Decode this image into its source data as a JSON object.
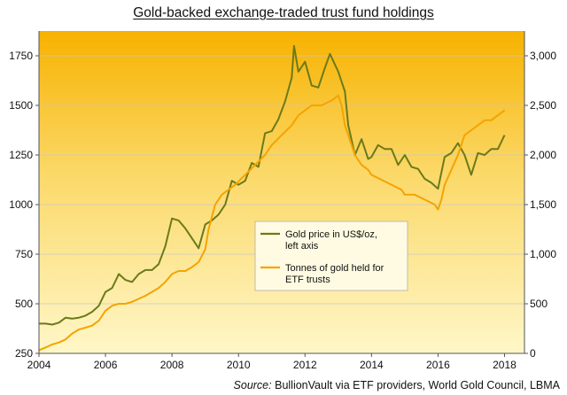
{
  "chart_data": {
    "type": "line",
    "title": "Gold-backed exchange-traded trust fund holdings",
    "source_label": "Source:",
    "source_text": "BullionVault via ETF providers,  World Gold Council, LBMA",
    "x_ticks": [
      "2004",
      "2006",
      "2008",
      "2010",
      "2012",
      "2014",
      "2016",
      "2018"
    ],
    "xlim": [
      2004,
      2018.6
    ],
    "left_axis": {
      "ylim": [
        250,
        1875
      ],
      "ticks": [
        250,
        500,
        750,
        1000,
        1250,
        1500,
        1750
      ],
      "tick_labels": [
        "250",
        "500",
        "750",
        "1000",
        "1250",
        "1500",
        "1750"
      ]
    },
    "right_axis": {
      "ylim": [
        0,
        3250
      ],
      "ticks": [
        0,
        500,
        1000,
        1500,
        2000,
        2500,
        3000
      ],
      "tick_labels": [
        "0",
        "500",
        "1,000",
        "1,500",
        "2,000",
        "2,500",
        "3,000"
      ]
    },
    "legend_position": "center",
    "series": [
      {
        "name": "Gold price in US$/oz,",
        "name_line2": "left axis",
        "axis": "left",
        "color": "#6b7a1a",
        "x": [
          2004.0,
          2004.2,
          2004.4,
          2004.6,
          2004.8,
          2005.0,
          2005.2,
          2005.4,
          2005.6,
          2005.8,
          2006.0,
          2006.2,
          2006.4,
          2006.6,
          2006.8,
          2007.0,
          2007.2,
          2007.4,
          2007.6,
          2007.8,
          2008.0,
          2008.2,
          2008.4,
          2008.6,
          2008.8,
          2009.0,
          2009.2,
          2009.4,
          2009.6,
          2009.8,
          2010.0,
          2010.2,
          2010.4,
          2010.6,
          2010.8,
          2011.0,
          2011.2,
          2011.4,
          2011.6,
          2011.67,
          2011.8,
          2012.0,
          2012.2,
          2012.4,
          2012.6,
          2012.75,
          2013.0,
          2013.2,
          2013.3,
          2013.5,
          2013.7,
          2013.9,
          2014.0,
          2014.2,
          2014.4,
          2014.6,
          2014.8,
          2015.0,
          2015.2,
          2015.4,
          2015.6,
          2015.8,
          2016.0,
          2016.2,
          2016.4,
          2016.6,
          2016.8,
          2017.0,
          2017.2,
          2017.4,
          2017.6,
          2017.8,
          2018.0
        ],
        "values": [
          400,
          400,
          395,
          405,
          430,
          425,
          430,
          440,
          460,
          490,
          560,
          580,
          650,
          620,
          610,
          650,
          670,
          670,
          700,
          790,
          930,
          920,
          880,
          830,
          780,
          900,
          920,
          950,
          1000,
          1120,
          1100,
          1120,
          1210,
          1190,
          1360,
          1370,
          1430,
          1520,
          1640,
          1800,
          1670,
          1720,
          1600,
          1590,
          1690,
          1760,
          1670,
          1570,
          1400,
          1250,
          1330,
          1230,
          1240,
          1300,
          1280,
          1280,
          1200,
          1250,
          1190,
          1180,
          1130,
          1110,
          1080,
          1240,
          1260,
          1310,
          1250,
          1150,
          1260,
          1250,
          1280,
          1280,
          1350
        ]
      },
      {
        "name": "Tonnes of gold held for",
        "name_line2": "ETF trusts",
        "axis": "right",
        "color": "#f5a300",
        "x": [
          2004.0,
          2004.2,
          2004.4,
          2004.6,
          2004.8,
          2005.0,
          2005.2,
          2005.4,
          2005.6,
          2005.8,
          2006.0,
          2006.2,
          2006.4,
          2006.6,
          2006.8,
          2007.0,
          2007.2,
          2007.4,
          2007.6,
          2007.8,
          2008.0,
          2008.2,
          2008.4,
          2008.6,
          2008.8,
          2009.0,
          2009.1,
          2009.3,
          2009.5,
          2009.7,
          2009.9,
          2010.2,
          2010.5,
          2010.8,
          2011.0,
          2011.3,
          2011.6,
          2011.8,
          2012.0,
          2012.2,
          2012.5,
          2012.8,
          2013.0,
          2013.1,
          2013.2,
          2013.3,
          2013.5,
          2013.7,
          2013.9,
          2014.0,
          2014.3,
          2014.6,
          2014.9,
          2015.0,
          2015.3,
          2015.6,
          2015.9,
          2016.0,
          2016.1,
          2016.2,
          2016.4,
          2016.6,
          2016.8,
          2017.0,
          2017.2,
          2017.4,
          2017.6,
          2017.8,
          2018.0
        ],
        "values": [
          30,
          60,
          90,
          110,
          140,
          200,
          240,
          260,
          280,
          330,
          430,
          480,
          500,
          500,
          520,
          550,
          580,
          620,
          660,
          720,
          800,
          830,
          830,
          870,
          920,
          1050,
          1250,
          1500,
          1600,
          1650,
          1700,
          1800,
          1900,
          2000,
          2100,
          2200,
          2300,
          2400,
          2450,
          2500,
          2500,
          2550,
          2600,
          2500,
          2300,
          2200,
          2000,
          1900,
          1850,
          1800,
          1750,
          1700,
          1650,
          1600,
          1600,
          1550,
          1500,
          1450,
          1550,
          1700,
          1850,
          2000,
          2200,
          2250,
          2300,
          2350,
          2350,
          2400,
          2450
        ]
      }
    ]
  }
}
